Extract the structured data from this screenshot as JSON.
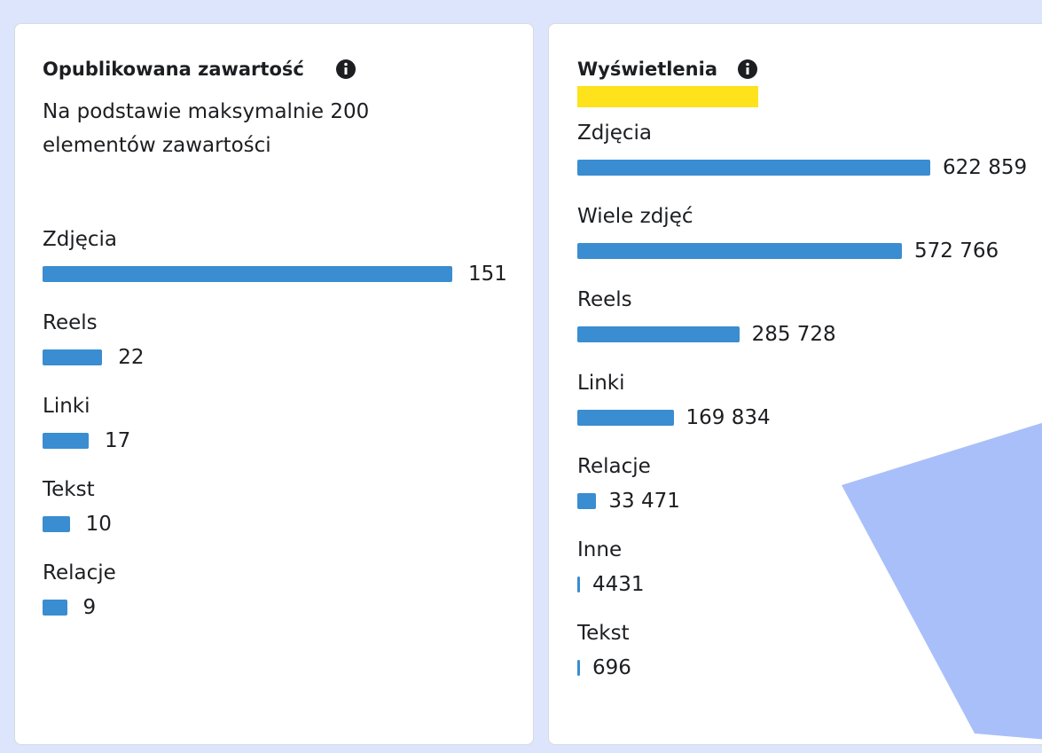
{
  "chart_data": [
    {
      "type": "bar",
      "orientation": "horizontal",
      "title": "Opublikowana zawartość",
      "subtitle": "Na podstawie maksymalnie 200 elementów zawartości",
      "categories": [
        "Zdjęcia",
        "Reels",
        "Linki",
        "Tekst",
        "Relacje"
      ],
      "values": [
        151,
        22,
        17,
        10,
        9
      ],
      "color": "#3a8dd0"
    },
    {
      "type": "bar",
      "orientation": "horizontal",
      "title": "Wyświetlenia",
      "categories": [
        "Zdjęcia",
        "Wiele zdjęć",
        "Reels",
        "Linki",
        "Relacje",
        "Inne",
        "Tekst"
      ],
      "values": [
        622859,
        572766,
        285728,
        169834,
        33471,
        4431,
        696
      ],
      "value_labels": [
        "622 859",
        "572 766",
        "285 728",
        "169 834",
        "33 471",
        "4431",
        "696"
      ],
      "color": "#3a8dd0"
    }
  ]
}
